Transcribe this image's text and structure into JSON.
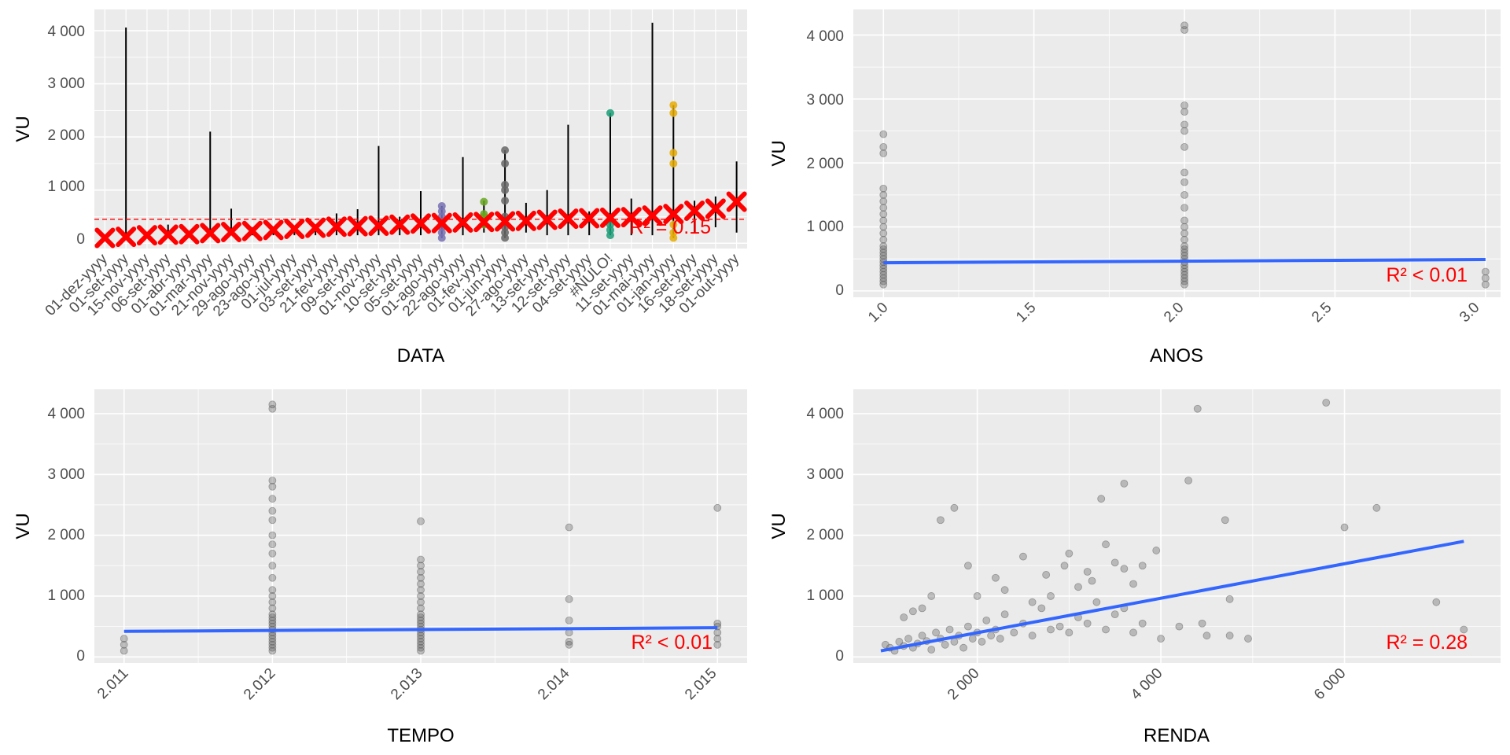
{
  "colors": {
    "panel_bg": "#ebebeb",
    "grid": "#ffffff",
    "fit_line": "#3366ff",
    "reference": "#ff0000",
    "point": "#595959"
  },
  "chart_data": [
    {
      "type": "scatter",
      "id": "data",
      "xlabel": "DATA",
      "ylabel": "VU",
      "ylim": [
        -100,
        4400
      ],
      "yticks": [
        0,
        1000,
        2000,
        3000,
        4000
      ],
      "ytick_labels": [
        "0",
        "1 000",
        "2 000",
        "3 000",
        "4 000"
      ],
      "categories": [
        "01-dez-yyyy",
        "01-set-yyyy",
        "15-nov-yyyy",
        "06-set-yyyy",
        "01-abr-yyyy",
        "01-mar-yyyy",
        "21-nov-yyyy",
        "29-ago-yyyy",
        "23-ago-yyyy",
        "01-jul-yyyy",
        "03-set-yyyy",
        "21-fev-yyyy",
        "09-set-yyyy",
        "01-nov-yyyy",
        "10-set-yyyy",
        "05-set-yyyy",
        "01-ago-yyyy",
        "22-ago-yyyy",
        "01-fev-yyyy",
        "01-jun-yyyy",
        "27-ago-yyyy",
        "13-set-yyyy",
        "12-set-yyyy",
        "04-set-yyyy",
        "#NULO!",
        "11-set-yyyy",
        "01-mai-yyyy",
        "01-jan-yyyy",
        "16-set-yyyy",
        "18-set-yyyy",
        "01-out-yyyy"
      ],
      "group_means": [
        100,
        120,
        150,
        160,
        170,
        190,
        210,
        230,
        250,
        270,
        290,
        310,
        320,
        330,
        350,
        370,
        380,
        390,
        400,
        410,
        420,
        440,
        460,
        470,
        480,
        490,
        520,
        550,
        610,
        650,
        780
      ],
      "group_ranges": [
        [
          60,
          140
        ],
        [
          100,
          4060
        ],
        [
          100,
          200
        ],
        [
          100,
          350
        ],
        [
          100,
          200
        ],
        [
          150,
          2100
        ],
        [
          150,
          650
        ],
        [
          150,
          300
        ],
        [
          150,
          300
        ],
        [
          150,
          300
        ],
        [
          150,
          350
        ],
        [
          150,
          560
        ],
        [
          150,
          640
        ],
        [
          150,
          1830
        ],
        [
          150,
          500
        ],
        [
          150,
          980
        ],
        [
          100,
          700
        ],
        [
          150,
          1620
        ],
        [
          200,
          800
        ],
        [
          100,
          1750
        ],
        [
          200,
          760
        ],
        [
          150,
          1000
        ],
        [
          150,
          2230
        ],
        [
          150,
          600
        ],
        [
          150,
          2450
        ],
        [
          150,
          840
        ],
        [
          150,
          4150
        ],
        [
          100,
          2600
        ],
        [
          200,
          800
        ],
        [
          300,
          880
        ],
        [
          200,
          1540
        ]
      ],
      "reference_line": 450,
      "colored_points": [
        {
          "category": "01-ago-yyyy",
          "color": "#7570b3",
          "values": [
            100,
            200,
            300,
            400,
            500,
            600,
            700
          ]
        },
        {
          "category": "01-fev-yyyy",
          "color": "#66a61e",
          "values": [
            350,
            500,
            550,
            780
          ]
        },
        {
          "category": "01-jun-yyyy",
          "color": "#666666",
          "values": [
            100,
            200,
            300,
            500,
            800,
            1000,
            1100,
            1500,
            1750
          ]
        },
        {
          "category": "#NULO!",
          "color": "#1b9e77",
          "values": [
            150,
            250,
            350,
            2450
          ]
        },
        {
          "category": "01-jan-yyyy",
          "color": "#e6ab02",
          "values": [
            100,
            200,
            350,
            1500,
            1700,
            2450,
            2600
          ]
        }
      ],
      "r2_text": "R² = 0.15"
    },
    {
      "type": "scatter",
      "id": "anos",
      "xlabel": "ANOS",
      "ylabel": "VU",
      "xlim": [
        0.9,
        3.05
      ],
      "ylim": [
        -100,
        4400
      ],
      "xticks": [
        1.0,
        1.5,
        2.0,
        2.5,
        3.0
      ],
      "xtick_labels": [
        "1.0",
        "1.5",
        "2.0",
        "2.5",
        "3.0"
      ],
      "yticks": [
        0,
        1000,
        2000,
        3000,
        4000
      ],
      "ytick_labels": [
        "0",
        "1 000",
        "2 000",
        "3 000",
        "4 000"
      ],
      "points": [
        [
          1,
          100
        ],
        [
          1,
          150
        ],
        [
          1,
          200
        ],
        [
          1,
          250
        ],
        [
          1,
          300
        ],
        [
          1,
          350
        ],
        [
          1,
          400
        ],
        [
          1,
          450
        ],
        [
          1,
          500
        ],
        [
          1,
          550
        ],
        [
          1,
          600
        ],
        [
          1,
          650
        ],
        [
          1,
          700
        ],
        [
          1,
          800
        ],
        [
          1,
          900
        ],
        [
          1,
          1000
        ],
        [
          1,
          1100
        ],
        [
          1,
          1200
        ],
        [
          1,
          1300
        ],
        [
          1,
          1400
        ],
        [
          1,
          1500
        ],
        [
          1,
          1600
        ],
        [
          1,
          2150
        ],
        [
          1,
          2250
        ],
        [
          1,
          2450
        ],
        [
          2,
          100
        ],
        [
          2,
          150
        ],
        [
          2,
          200
        ],
        [
          2,
          250
        ],
        [
          2,
          300
        ],
        [
          2,
          350
        ],
        [
          2,
          400
        ],
        [
          2,
          450
        ],
        [
          2,
          500
        ],
        [
          2,
          550
        ],
        [
          2,
          600
        ],
        [
          2,
          650
        ],
        [
          2,
          700
        ],
        [
          2,
          800
        ],
        [
          2,
          900
        ],
        [
          2,
          1000
        ],
        [
          2,
          1100
        ],
        [
          2,
          1300
        ],
        [
          2,
          1500
        ],
        [
          2,
          1700
        ],
        [
          2,
          1850
        ],
        [
          2,
          2250
        ],
        [
          2,
          2500
        ],
        [
          2,
          2600
        ],
        [
          2,
          2800
        ],
        [
          2,
          2900
        ],
        [
          2,
          4080
        ],
        [
          2,
          4150
        ],
        [
          3,
          100
        ],
        [
          3,
          200
        ],
        [
          3,
          300
        ]
      ],
      "fit": {
        "x": [
          1,
          3
        ],
        "y": [
          440,
          490
        ]
      },
      "r2_text": "R² < 0.01"
    },
    {
      "type": "scatter",
      "id": "tempo",
      "xlabel": "TEMPO",
      "ylabel": "VU",
      "xlim": [
        2010.8,
        2015.2
      ],
      "ylim": [
        -100,
        4400
      ],
      "xticks": [
        2011,
        2012,
        2013,
        2014,
        2015
      ],
      "xtick_labels": [
        "2.011",
        "2.012",
        "2.013",
        "2.014",
        "2.015"
      ],
      "yticks": [
        0,
        1000,
        2000,
        3000,
        4000
      ],
      "ytick_labels": [
        "0",
        "1 000",
        "2 000",
        "3 000",
        "4 000"
      ],
      "points": [
        [
          2011,
          100
        ],
        [
          2011,
          200
        ],
        [
          2011,
          300
        ],
        [
          2012,
          100
        ],
        [
          2012,
          150
        ],
        [
          2012,
          200
        ],
        [
          2012,
          250
        ],
        [
          2012,
          300
        ],
        [
          2012,
          350
        ],
        [
          2012,
          400
        ],
        [
          2012,
          450
        ],
        [
          2012,
          500
        ],
        [
          2012,
          550
        ],
        [
          2012,
          600
        ],
        [
          2012,
          650
        ],
        [
          2012,
          700
        ],
        [
          2012,
          800
        ],
        [
          2012,
          900
        ],
        [
          2012,
          1000
        ],
        [
          2012,
          1100
        ],
        [
          2012,
          1300
        ],
        [
          2012,
          1500
        ],
        [
          2012,
          1700
        ],
        [
          2012,
          1850
        ],
        [
          2012,
          2000
        ],
        [
          2012,
          2250
        ],
        [
          2012,
          2400
        ],
        [
          2012,
          2600
        ],
        [
          2012,
          2800
        ],
        [
          2012,
          2900
        ],
        [
          2012,
          4080
        ],
        [
          2012,
          4150
        ],
        [
          2013,
          100
        ],
        [
          2013,
          150
        ],
        [
          2013,
          200
        ],
        [
          2013,
          250
        ],
        [
          2013,
          300
        ],
        [
          2013,
          350
        ],
        [
          2013,
          400
        ],
        [
          2013,
          450
        ],
        [
          2013,
          500
        ],
        [
          2013,
          550
        ],
        [
          2013,
          600
        ],
        [
          2013,
          650
        ],
        [
          2013,
          700
        ],
        [
          2013,
          800
        ],
        [
          2013,
          900
        ],
        [
          2013,
          1000
        ],
        [
          2013,
          1100
        ],
        [
          2013,
          1200
        ],
        [
          2013,
          1300
        ],
        [
          2013,
          1400
        ],
        [
          2013,
          1500
        ],
        [
          2013,
          1600
        ],
        [
          2013,
          2230
        ],
        [
          2014,
          200
        ],
        [
          2014,
          250
        ],
        [
          2014,
          400
        ],
        [
          2014,
          600
        ],
        [
          2014,
          950
        ],
        [
          2014,
          2130
        ],
        [
          2015,
          200
        ],
        [
          2015,
          300
        ],
        [
          2015,
          400
        ],
        [
          2015,
          500
        ],
        [
          2015,
          550
        ],
        [
          2015,
          2450
        ]
      ],
      "fit": {
        "x": [
          2011,
          2015
        ],
        "y": [
          420,
          480
        ]
      },
      "r2_text": "R² < 0.01"
    },
    {
      "type": "scatter",
      "id": "renda",
      "xlabel": "RENDA",
      "ylabel": "VU",
      "xlim": [
        650,
        7700
      ],
      "ylim": [
        -100,
        4400
      ],
      "xticks": [
        2000,
        4000,
        6000
      ],
      "xtick_labels": [
        "2 000",
        "4 000",
        "6 000"
      ],
      "yticks": [
        0,
        1000,
        2000,
        3000,
        4000
      ],
      "ytick_labels": [
        "0",
        "1 000",
        "2 000",
        "3 000",
        "4 000"
      ],
      "points": [
        [
          1000,
          200
        ],
        [
          1050,
          150
        ],
        [
          1100,
          100
        ],
        [
          1150,
          250
        ],
        [
          1200,
          180
        ],
        [
          1250,
          300
        ],
        [
          1300,
          150
        ],
        [
          1350,
          220
        ],
        [
          1400,
          350
        ],
        [
          1450,
          260
        ],
        [
          1500,
          120
        ],
        [
          1550,
          400
        ],
        [
          1600,
          300
        ],
        [
          1650,
          200
        ],
        [
          1700,
          450
        ],
        [
          1750,
          250
        ],
        [
          1800,
          350
        ],
        [
          1850,
          150
        ],
        [
          1900,
          500
        ],
        [
          1950,
          300
        ],
        [
          2000,
          400
        ],
        [
          2050,
          250
        ],
        [
          2100,
          600
        ],
        [
          2150,
          350
        ],
        [
          2200,
          450
        ],
        [
          2250,
          300
        ],
        [
          2300,
          700
        ],
        [
          2400,
          400
        ],
        [
          2500,
          550
        ],
        [
          2600,
          350
        ],
        [
          2700,
          800
        ],
        [
          2800,
          450
        ],
        [
          2900,
          500
        ],
        [
          3000,
          400
        ],
        [
          3100,
          650
        ],
        [
          3200,
          550
        ],
        [
          3300,
          900
        ],
        [
          3400,
          450
        ],
        [
          3500,
          700
        ],
        [
          3600,
          800
        ],
        [
          3700,
          400
        ],
        [
          3800,
          550
        ],
        [
          4000,
          300
        ],
        [
          4200,
          500
        ],
        [
          1200,
          650
        ],
        [
          1300,
          750
        ],
        [
          1400,
          800
        ],
        [
          1500,
          1000
        ],
        [
          1600,
          2250
        ],
        [
          1750,
          2450
        ],
        [
          1900,
          1500
        ],
        [
          2000,
          1000
        ],
        [
          2200,
          1300
        ],
        [
          2300,
          1100
        ],
        [
          2500,
          1650
        ],
        [
          2600,
          900
        ],
        [
          2750,
          1350
        ],
        [
          2800,
          1000
        ],
        [
          2950,
          1500
        ],
        [
          3000,
          1700
        ],
        [
          3100,
          1150
        ],
        [
          3200,
          1400
        ],
        [
          3250,
          1250
        ],
        [
          3350,
          2600
        ],
        [
          3400,
          1850
        ],
        [
          3500,
          1550
        ],
        [
          3600,
          1450
        ],
        [
          3600,
          2850
        ],
        [
          3700,
          1200
        ],
        [
          3800,
          1500
        ],
        [
          3950,
          1750
        ],
        [
          4300,
          2900
        ],
        [
          4400,
          4080
        ],
        [
          4450,
          550
        ],
        [
          4500,
          350
        ],
        [
          4700,
          2250
        ],
        [
          4750,
          950
        ],
        [
          4750,
          350
        ],
        [
          4950,
          300
        ],
        [
          5800,
          4180
        ],
        [
          6000,
          2130
        ],
        [
          6350,
          2450
        ],
        [
          7000,
          900
        ],
        [
          7300,
          450
        ]
      ],
      "fit": {
        "x": [
          950,
          7300
        ],
        "y": [
          100,
          1900
        ]
      },
      "r2_text": "R² = 0.28"
    }
  ]
}
